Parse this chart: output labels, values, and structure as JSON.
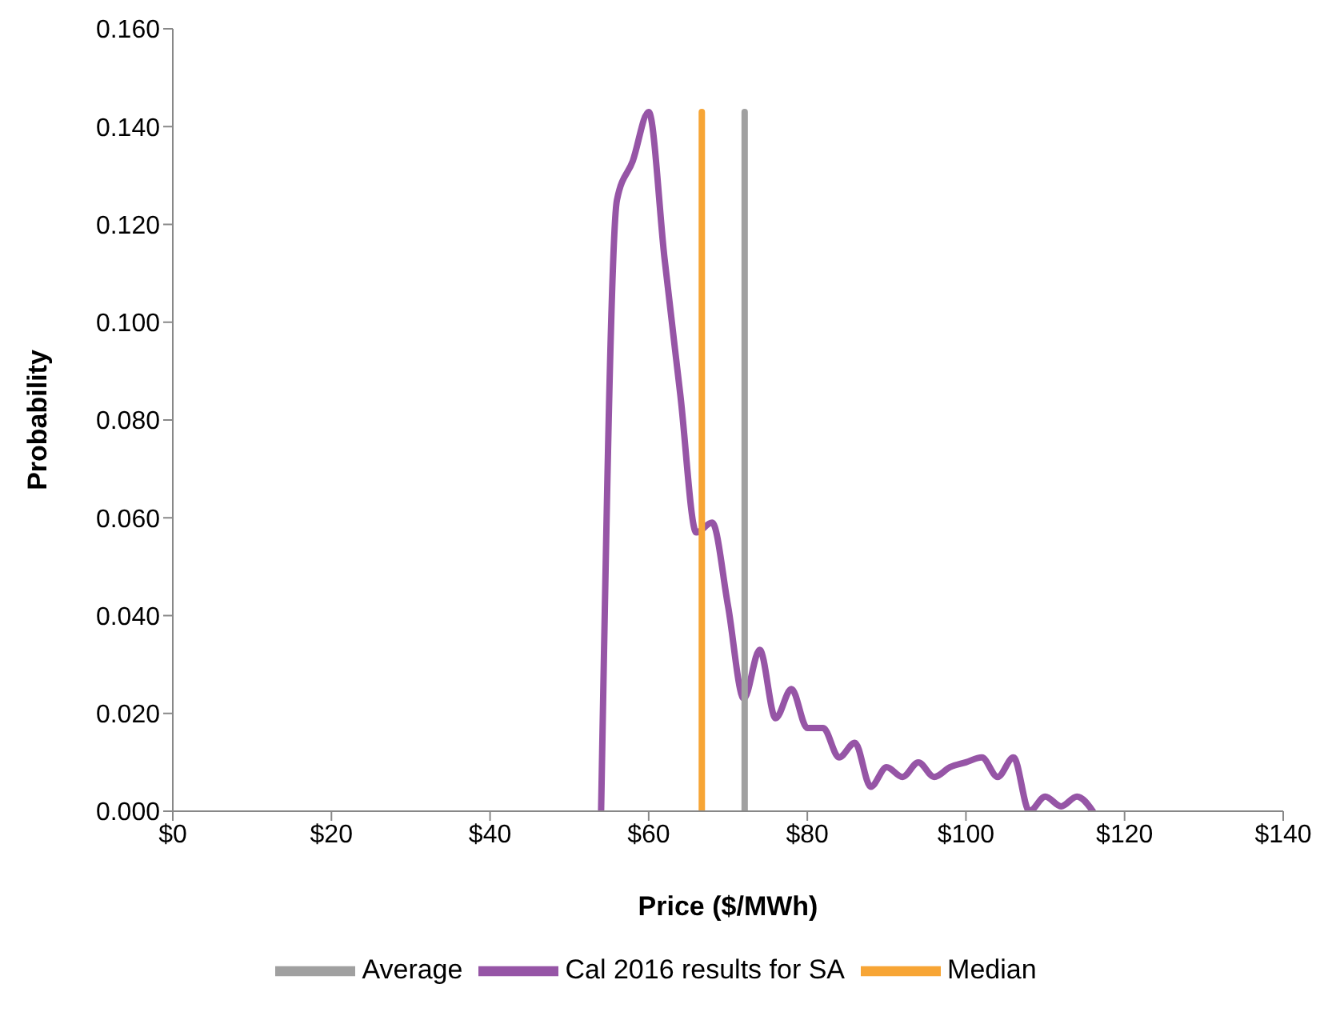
{
  "chart_data": {
    "type": "line",
    "xlabel": "Price ($/MWh)",
    "ylabel": "Probability",
    "xlim": [
      0,
      140
    ],
    "xticks": [
      {
        "value": 0,
        "label": "$0"
      },
      {
        "value": 20,
        "label": "$20"
      },
      {
        "value": 40,
        "label": "$40"
      },
      {
        "value": 60,
        "label": "$60"
      },
      {
        "value": 80,
        "label": "$80"
      },
      {
        "value": 100,
        "label": "$100"
      },
      {
        "value": 120,
        "label": "$120"
      },
      {
        "value": 140,
        "label": "$140"
      }
    ],
    "ylim": [
      0,
      0.16
    ],
    "yticks": [
      {
        "value": 0,
        "label": "0.000"
      },
      {
        "value": 0.02,
        "label": "0.020"
      },
      {
        "value": 0.04,
        "label": "0.040"
      },
      {
        "value": 0.06,
        "label": "0.060"
      },
      {
        "value": 0.08,
        "label": "0.080"
      },
      {
        "value": 0.1,
        "label": "0.100"
      },
      {
        "value": 0.12,
        "label": "0.120"
      },
      {
        "value": 0.14,
        "label": "0.140"
      },
      {
        "value": 0.16,
        "label": "0.160"
      }
    ],
    "grid": false,
    "legend": "bottom",
    "marker": "none",
    "series": [
      {
        "name": "Cal 2016 results for SA",
        "color": "#9655a6",
        "x": [
          54,
          56,
          58,
          60,
          62,
          64,
          66,
          68,
          70,
          72,
          74,
          76,
          78,
          80,
          82,
          84,
          86,
          88,
          90,
          92,
          94,
          96,
          98,
          100,
          102,
          104,
          106,
          108,
          110,
          112,
          114,
          116
        ],
        "values": [
          0,
          0.125,
          0.133,
          0.143,
          0.113,
          0.085,
          0.057,
          0.059,
          0.042,
          0.023,
          0.033,
          0.019,
          0.025,
          0.017,
          0.017,
          0.011,
          0.014,
          0.005,
          0.009,
          0.007,
          0.01,
          0.007,
          0.009,
          0.01,
          0.011,
          0.007,
          0.011,
          0,
          0.003,
          0.001,
          0.003,
          0
        ]
      },
      {
        "name": "Median",
        "color": "#f7a535",
        "x": [
          66.7,
          66.7
        ],
        "values": [
          0,
          0.143
        ]
      },
      {
        "name": "Average",
        "color": "#a0a0a0",
        "x": [
          72.1,
          72.1
        ],
        "values": [
          0,
          0.143
        ]
      }
    ]
  }
}
